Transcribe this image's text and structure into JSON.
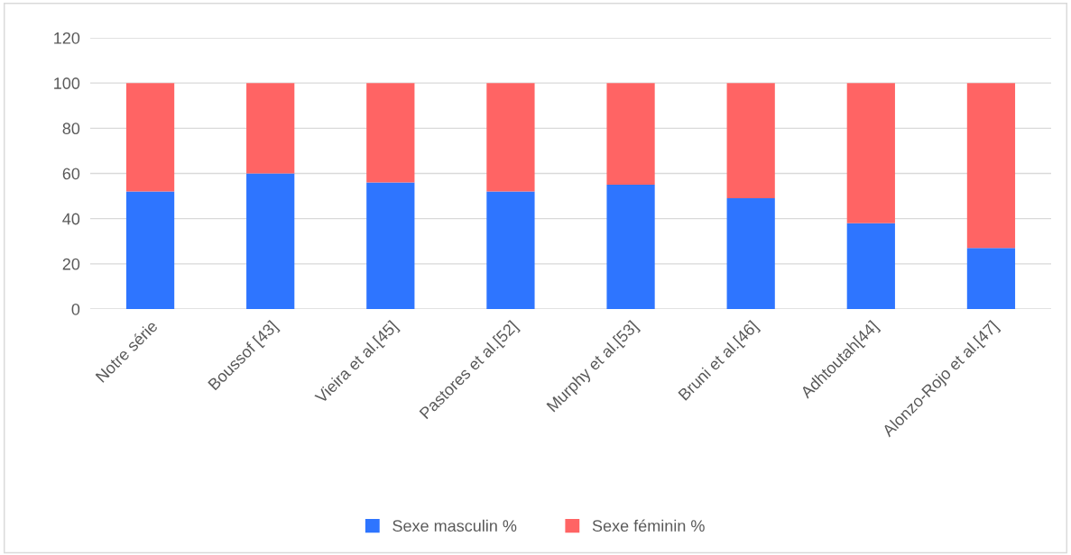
{
  "chart_data": {
    "type": "bar",
    "stacked": true,
    "categories": [
      "Notre série",
      "Boussof [43]",
      "Vieira et al.[45]",
      "Pastores et al.[52]",
      "Murphy et al.[53]",
      "Bruni et al.[46]",
      "Adhtoutah[44]",
      "Alonzo-Rojo et al.[47]"
    ],
    "series": [
      {
        "name": "Sexe masculin %",
        "color": "#2e75ff",
        "values": [
          52,
          60,
          56,
          52,
          55,
          49,
          38,
          27
        ]
      },
      {
        "name": "Sexe féminin %",
        "color": "#ff6464",
        "values": [
          48,
          40,
          44,
          48,
          45,
          51,
          62,
          73
        ]
      }
    ],
    "ylim": [
      0,
      120
    ],
    "yticks": [
      0,
      20,
      40,
      60,
      80,
      100,
      120
    ],
    "grid": "y",
    "legend": "bottom"
  }
}
